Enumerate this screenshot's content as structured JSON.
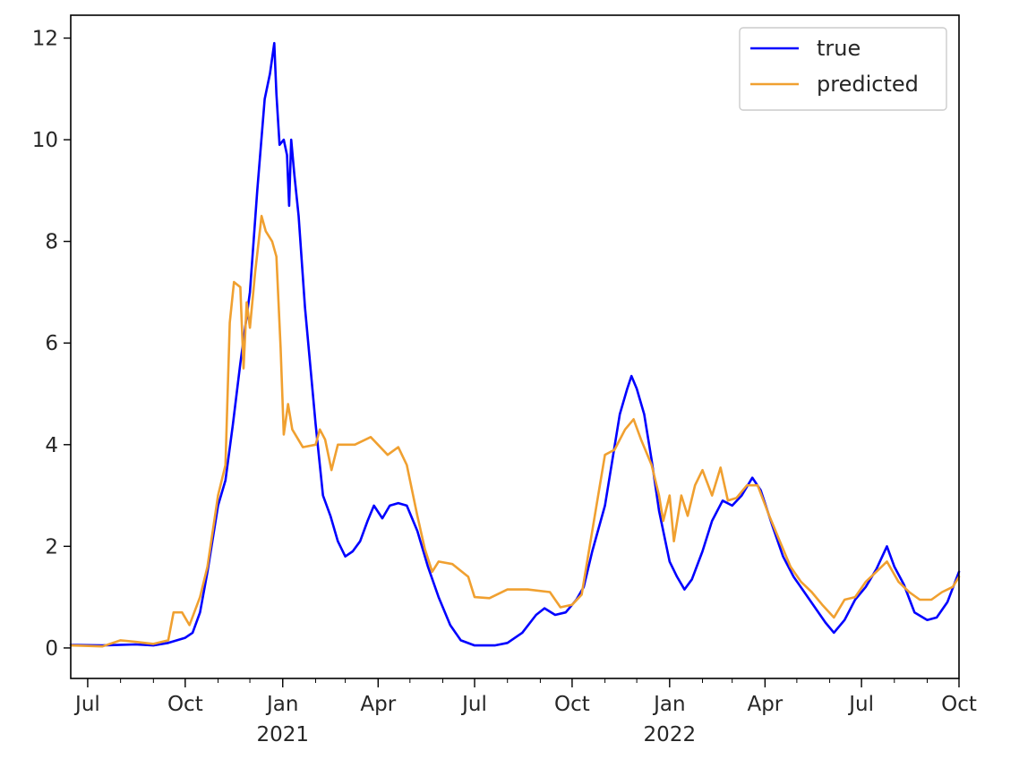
{
  "chart_data": {
    "type": "line",
    "title": "",
    "xlabel": "",
    "ylabel": "",
    "x_range": [
      "2020-06-15",
      "2022-10-01"
    ],
    "ylim": [
      -0.6,
      12.45
    ],
    "y_ticks": [
      0,
      2,
      4,
      6,
      8,
      10,
      12
    ],
    "x_ticks": [
      {
        "date": "2020-07-01",
        "label": "Jul"
      },
      {
        "date": "2020-10-01",
        "label": "Oct"
      },
      {
        "date": "2021-01-01",
        "label": "Jan"
      },
      {
        "date": "2021-04-01",
        "label": "Apr"
      },
      {
        "date": "2021-07-01",
        "label": "Jul"
      },
      {
        "date": "2021-10-01",
        "label": "Oct"
      },
      {
        "date": "2022-01-01",
        "label": "Jan"
      },
      {
        "date": "2022-04-01",
        "label": "Apr"
      },
      {
        "date": "2022-07-01",
        "label": "Jul"
      },
      {
        "date": "2022-10-01",
        "label": "Oct"
      }
    ],
    "year_labels": [
      {
        "date": "2021-01-01",
        "label": "2021"
      },
      {
        "date": "2022-01-01",
        "label": "2022"
      }
    ],
    "grid": false,
    "legend_position": "top-right",
    "series": [
      {
        "name": "true",
        "color": "#0000ff",
        "points": [
          [
            "2020-06-15",
            0.06
          ],
          [
            "2020-07-15",
            0.05
          ],
          [
            "2020-08-15",
            0.07
          ],
          [
            "2020-09-01",
            0.05
          ],
          [
            "2020-09-15",
            0.1
          ],
          [
            "2020-10-01",
            0.2
          ],
          [
            "2020-10-08",
            0.3
          ],
          [
            "2020-10-15",
            0.7
          ],
          [
            "2020-10-22",
            1.5
          ],
          [
            "2020-11-01",
            2.8
          ],
          [
            "2020-11-08",
            3.3
          ],
          [
            "2020-11-15",
            4.4
          ],
          [
            "2020-11-22",
            5.6
          ],
          [
            "2020-12-01",
            7.0
          ],
          [
            "2020-12-08",
            9.0
          ],
          [
            "2020-12-15",
            10.8
          ],
          [
            "2020-12-20",
            11.3
          ],
          [
            "2020-12-24",
            11.9
          ],
          [
            "2020-12-26",
            10.9
          ],
          [
            "2020-12-29",
            9.9
          ],
          [
            "2021-01-02",
            10.0
          ],
          [
            "2021-01-05",
            9.7
          ],
          [
            "2021-01-07",
            8.7
          ],
          [
            "2021-01-09",
            10.0
          ],
          [
            "2021-01-12",
            9.3
          ],
          [
            "2021-01-16",
            8.5
          ],
          [
            "2021-01-22",
            6.7
          ],
          [
            "2021-02-01",
            4.4
          ],
          [
            "2021-02-08",
            3.0
          ],
          [
            "2021-02-15",
            2.6
          ],
          [
            "2021-02-22",
            2.1
          ],
          [
            "2021-03-01",
            1.8
          ],
          [
            "2021-03-08",
            1.9
          ],
          [
            "2021-03-15",
            2.1
          ],
          [
            "2021-03-22",
            2.5
          ],
          [
            "2021-03-28",
            2.8
          ],
          [
            "2021-04-05",
            2.55
          ],
          [
            "2021-04-12",
            2.8
          ],
          [
            "2021-04-20",
            2.85
          ],
          [
            "2021-04-28",
            2.8
          ],
          [
            "2021-05-08",
            2.3
          ],
          [
            "2021-05-18",
            1.6
          ],
          [
            "2021-05-28",
            1.0
          ],
          [
            "2021-06-08",
            0.45
          ],
          [
            "2021-06-18",
            0.15
          ],
          [
            "2021-07-01",
            0.05
          ],
          [
            "2021-07-20",
            0.05
          ],
          [
            "2021-08-01",
            0.1
          ],
          [
            "2021-08-15",
            0.3
          ],
          [
            "2021-08-28",
            0.65
          ],
          [
            "2021-09-05",
            0.78
          ],
          [
            "2021-09-15",
            0.65
          ],
          [
            "2021-09-25",
            0.7
          ],
          [
            "2021-10-05",
            0.95
          ],
          [
            "2021-10-12",
            1.2
          ],
          [
            "2021-10-20",
            1.9
          ],
          [
            "2021-11-01",
            2.8
          ],
          [
            "2021-11-08",
            3.7
          ],
          [
            "2021-11-15",
            4.6
          ],
          [
            "2021-11-22",
            5.1
          ],
          [
            "2021-11-26",
            5.35
          ],
          [
            "2021-12-01",
            5.1
          ],
          [
            "2021-12-08",
            4.6
          ],
          [
            "2021-12-15",
            3.7
          ],
          [
            "2021-12-22",
            2.7
          ],
          [
            "2022-01-01",
            1.7
          ],
          [
            "2022-01-08",
            1.4
          ],
          [
            "2022-01-15",
            1.15
          ],
          [
            "2022-01-22",
            1.35
          ],
          [
            "2022-02-01",
            1.9
          ],
          [
            "2022-02-10",
            2.5
          ],
          [
            "2022-02-20",
            2.9
          ],
          [
            "2022-03-01",
            2.8
          ],
          [
            "2022-03-10",
            3.0
          ],
          [
            "2022-03-20",
            3.35
          ],
          [
            "2022-03-28",
            3.1
          ],
          [
            "2022-04-08",
            2.4
          ],
          [
            "2022-04-18",
            1.8
          ],
          [
            "2022-04-28",
            1.4
          ],
          [
            "2022-05-08",
            1.1
          ],
          [
            "2022-05-18",
            0.8
          ],
          [
            "2022-05-28",
            0.5
          ],
          [
            "2022-06-05",
            0.3
          ],
          [
            "2022-06-15",
            0.55
          ],
          [
            "2022-06-25",
            0.95
          ],
          [
            "2022-07-05",
            1.2
          ],
          [
            "2022-07-15",
            1.55
          ],
          [
            "2022-07-25",
            2.0
          ],
          [
            "2022-08-01",
            1.6
          ],
          [
            "2022-08-10",
            1.25
          ],
          [
            "2022-08-20",
            0.7
          ],
          [
            "2022-09-01",
            0.55
          ],
          [
            "2022-09-10",
            0.6
          ],
          [
            "2022-09-20",
            0.9
          ],
          [
            "2022-10-01",
            1.5
          ]
        ]
      },
      {
        "name": "predicted",
        "color": "#f0a030",
        "points": [
          [
            "2020-06-15",
            0.05
          ],
          [
            "2020-07-15",
            0.03
          ],
          [
            "2020-08-01",
            0.15
          ],
          [
            "2020-08-15",
            0.12
          ],
          [
            "2020-09-01",
            0.08
          ],
          [
            "2020-09-15",
            0.15
          ],
          [
            "2020-09-20",
            0.7
          ],
          [
            "2020-09-28",
            0.7
          ],
          [
            "2020-10-05",
            0.45
          ],
          [
            "2020-10-15",
            1.0
          ],
          [
            "2020-10-22",
            1.6
          ],
          [
            "2020-11-01",
            3.0
          ],
          [
            "2020-11-08",
            3.6
          ],
          [
            "2020-11-12",
            6.4
          ],
          [
            "2020-11-16",
            7.2
          ],
          [
            "2020-11-22",
            7.1
          ],
          [
            "2020-11-25",
            5.5
          ],
          [
            "2020-11-28",
            6.8
          ],
          [
            "2020-12-01",
            6.3
          ],
          [
            "2020-12-06",
            7.4
          ],
          [
            "2020-12-12",
            8.5
          ],
          [
            "2020-12-16",
            8.2
          ],
          [
            "2020-12-22",
            8.0
          ],
          [
            "2020-12-26",
            7.7
          ],
          [
            "2020-12-30",
            5.9
          ],
          [
            "2021-01-02",
            4.2
          ],
          [
            "2021-01-06",
            4.8
          ],
          [
            "2021-01-10",
            4.3
          ],
          [
            "2021-01-20",
            3.95
          ],
          [
            "2021-02-01",
            4.0
          ],
          [
            "2021-02-05",
            4.3
          ],
          [
            "2021-02-10",
            4.1
          ],
          [
            "2021-02-16",
            3.5
          ],
          [
            "2021-02-22",
            4.0
          ],
          [
            "2021-03-10",
            4.0
          ],
          [
            "2021-03-25",
            4.15
          ],
          [
            "2021-04-10",
            3.8
          ],
          [
            "2021-04-20",
            3.95
          ],
          [
            "2021-04-28",
            3.6
          ],
          [
            "2021-05-08",
            2.6
          ],
          [
            "2021-05-15",
            1.95
          ],
          [
            "2021-05-22",
            1.5
          ],
          [
            "2021-05-28",
            1.7
          ],
          [
            "2021-06-10",
            1.65
          ],
          [
            "2021-06-25",
            1.4
          ],
          [
            "2021-07-01",
            1.0
          ],
          [
            "2021-07-15",
            0.98
          ],
          [
            "2021-08-01",
            1.15
          ],
          [
            "2021-08-20",
            1.15
          ],
          [
            "2021-09-10",
            1.1
          ],
          [
            "2021-09-20",
            0.8
          ],
          [
            "2021-10-01",
            0.85
          ],
          [
            "2021-10-10",
            1.05
          ],
          [
            "2021-10-20",
            2.3
          ],
          [
            "2021-11-01",
            3.8
          ],
          [
            "2021-11-10",
            3.9
          ],
          [
            "2021-11-20",
            4.3
          ],
          [
            "2021-11-28",
            4.5
          ],
          [
            "2021-12-05",
            4.1
          ],
          [
            "2021-12-15",
            3.6
          ],
          [
            "2021-12-22",
            3.0
          ],
          [
            "2021-12-26",
            2.5
          ],
          [
            "2022-01-01",
            3.0
          ],
          [
            "2022-01-05",
            2.1
          ],
          [
            "2022-01-12",
            3.0
          ],
          [
            "2022-01-18",
            2.6
          ],
          [
            "2022-01-25",
            3.2
          ],
          [
            "2022-02-01",
            3.5
          ],
          [
            "2022-02-10",
            3.0
          ],
          [
            "2022-02-18",
            3.55
          ],
          [
            "2022-02-25",
            2.9
          ],
          [
            "2022-03-05",
            2.95
          ],
          [
            "2022-03-15",
            3.2
          ],
          [
            "2022-03-25",
            3.2
          ],
          [
            "2022-04-05",
            2.6
          ],
          [
            "2022-04-15",
            2.1
          ],
          [
            "2022-04-25",
            1.6
          ],
          [
            "2022-05-05",
            1.3
          ],
          [
            "2022-05-15",
            1.1
          ],
          [
            "2022-05-25",
            0.85
          ],
          [
            "2022-06-05",
            0.6
          ],
          [
            "2022-06-15",
            0.95
          ],
          [
            "2022-06-25",
            1.0
          ],
          [
            "2022-07-05",
            1.3
          ],
          [
            "2022-07-15",
            1.5
          ],
          [
            "2022-07-25",
            1.7
          ],
          [
            "2022-08-05",
            1.3
          ],
          [
            "2022-08-15",
            1.1
          ],
          [
            "2022-08-25",
            0.95
          ],
          [
            "2022-09-05",
            0.95
          ],
          [
            "2022-09-15",
            1.1
          ],
          [
            "2022-09-25",
            1.2
          ],
          [
            "2022-10-01",
            1.4
          ]
        ]
      }
    ]
  }
}
